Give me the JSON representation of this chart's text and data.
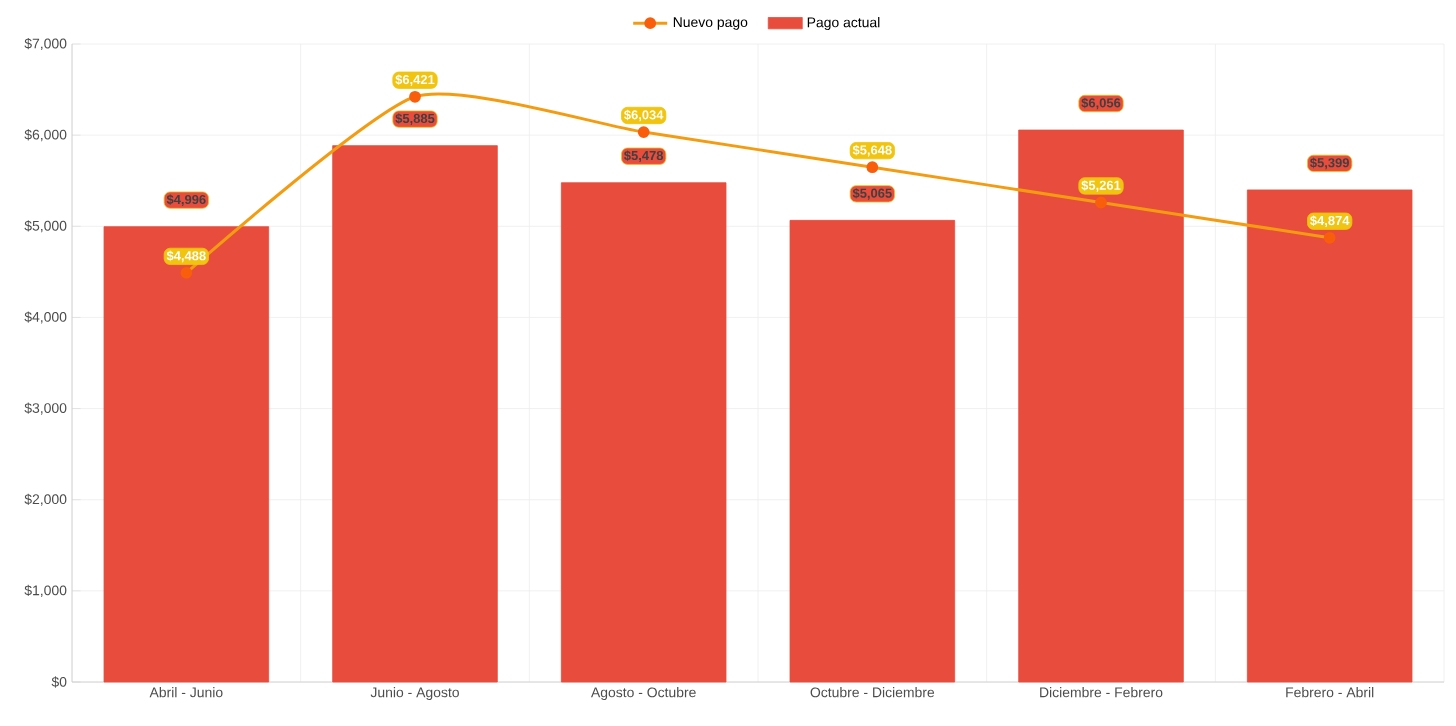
{
  "chart_data": {
    "type": "bar",
    "categories": [
      "Abril - Junio",
      "Junio - Agosto",
      "Agosto - Octubre",
      "Octubre - Diciembre",
      "Diciembre - Febrero",
      "Febrero - Abril"
    ],
    "series": [
      {
        "name": "Nuevo pago",
        "type": "line",
        "color": "#f39c12",
        "marker": "circle",
        "values": [
          4488,
          6421,
          6034,
          5648,
          5261,
          4874
        ],
        "value_labels": [
          "$4,488",
          "$6,421",
          "$6,034",
          "$5,648",
          "$5,261",
          "$4,874"
        ]
      },
      {
        "name": "Pago actual",
        "color": "#e74c3c",
        "values": [
          4996,
          5885,
          5478,
          5065,
          6056,
          5399
        ],
        "value_labels": [
          "$4,996",
          "$5,885",
          "$5,478",
          "$5,065",
          "$6,056",
          "$5,399"
        ]
      }
    ],
    "ylim": [
      0,
      7000
    ],
    "yticks": [
      {
        "value": 0,
        "label": "$0"
      },
      {
        "value": 1000,
        "label": "$1,000"
      },
      {
        "value": 2000,
        "label": "$2,000"
      },
      {
        "value": 3000,
        "label": "$3,000"
      },
      {
        "value": 4000,
        "label": "$4,000"
      },
      {
        "value": 5000,
        "label": "$5,000"
      },
      {
        "value": 6000,
        "label": "$6,000"
      },
      {
        "value": 7000,
        "label": "$7,000"
      }
    ],
    "grid": true,
    "legend": "top"
  }
}
